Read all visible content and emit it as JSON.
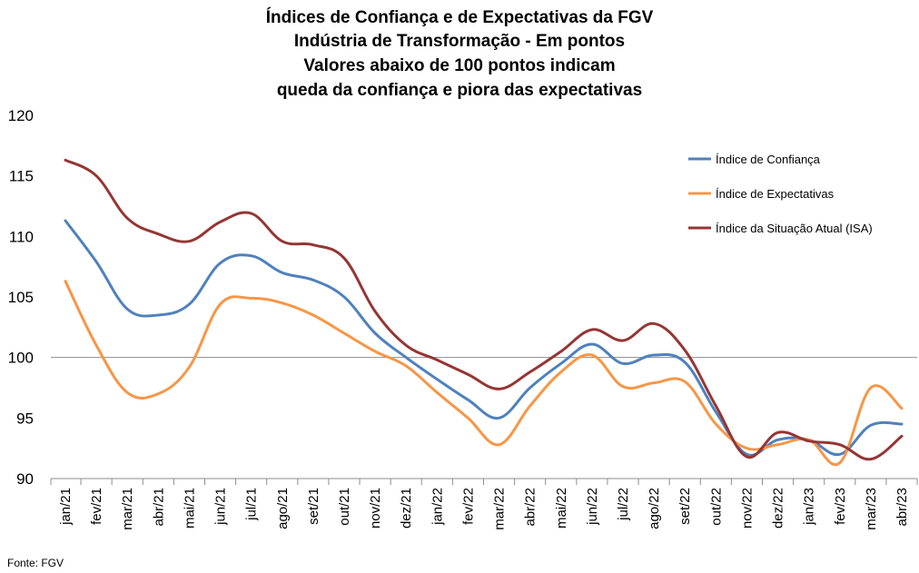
{
  "chart_data": {
    "type": "line",
    "title_lines": [
      "Índices de Confiança e de Expectativas da FGV",
      "Indústria de Transformação - Em pontos",
      "Valores abaixo de 100 pontos indicam",
      "queda da confiança e piora das expectativas"
    ],
    "source": "Fonte: FGV",
    "categories": [
      "jan/21",
      "fev/21",
      "mar/21",
      "abr/21",
      "mai/21",
      "jun/21",
      "jul/21",
      "ago/21",
      "set/21",
      "out/21",
      "nov/21",
      "dez/21",
      "jan/22",
      "fev/22",
      "mar/22",
      "abr/22",
      "mai/22",
      "jun/22",
      "jul/22",
      "ago/22",
      "set/22",
      "out/22",
      "nov/22",
      "dez/22",
      "jan/23",
      "fev/23",
      "mar/23",
      "abr/23"
    ],
    "y_ticks": [
      "90",
      "95",
      "100",
      "105",
      "110",
      "115",
      "120"
    ],
    "ylim": [
      90,
      120
    ],
    "reference_line": 100,
    "legend_position": "top-right",
    "series": [
      {
        "name": "Índice de Confiança",
        "color": "#4f81bd",
        "values": [
          111.3,
          107.9,
          104.0,
          103.5,
          104.4,
          107.8,
          108.4,
          107.0,
          106.4,
          105.0,
          102.0,
          100.0,
          98.2,
          96.5,
          95.0,
          97.5,
          99.5,
          101.1,
          99.5,
          100.2,
          99.6,
          95.5,
          92.0,
          93.2,
          93.2,
          92.0,
          94.4,
          94.5
        ]
      },
      {
        "name": "Índice de Expectativas",
        "color": "#f79646",
        "values": [
          106.3,
          101.0,
          97.1,
          97.0,
          99.2,
          104.4,
          104.9,
          104.5,
          103.5,
          102.0,
          100.5,
          99.3,
          97.1,
          95.0,
          92.8,
          96.0,
          98.8,
          100.2,
          97.6,
          97.9,
          98.0,
          94.5,
          92.5,
          92.8,
          93.2,
          91.3,
          97.5,
          95.8
        ]
      },
      {
        "name": "Índice da Situação Atual (ISA)",
        "color": "#943634",
        "values": [
          116.3,
          115.0,
          111.5,
          110.2,
          109.6,
          111.2,
          111.9,
          109.6,
          109.3,
          108.2,
          103.8,
          101.0,
          99.8,
          98.6,
          97.4,
          98.8,
          100.5,
          102.3,
          101.4,
          102.8,
          100.6,
          96.0,
          91.8,
          93.8,
          93.1,
          92.8,
          91.6,
          93.5
        ]
      }
    ]
  }
}
